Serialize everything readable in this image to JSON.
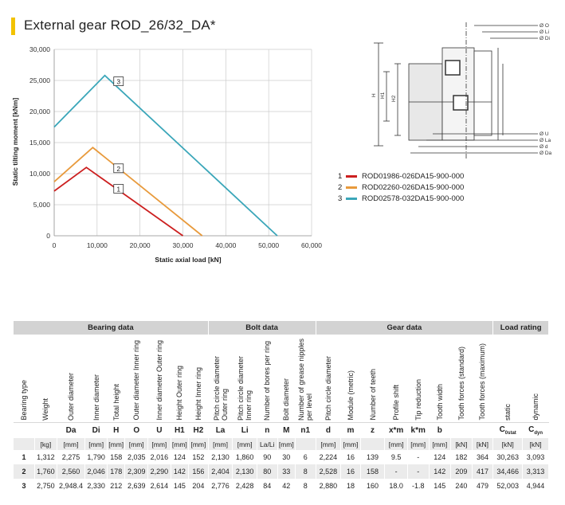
{
  "title": "External gear ROD_26/32_DA*",
  "colors": {
    "accent": "#f2c200",
    "series1": "#cc1f1f",
    "series2": "#e89a3c",
    "series3": "#3aa6b9"
  },
  "chart_data": {
    "type": "line",
    "xlabel": "Static axial load [kN]",
    "ylabel": "Static tilting moment [kNm]",
    "xlim": [
      0,
      60000
    ],
    "ylim": [
      0,
      30000
    ],
    "xticks": [
      "0",
      "10,000",
      "20,000",
      "30,000",
      "40,000",
      "50,000",
      "60,000"
    ],
    "yticks": [
      "0",
      "5,000",
      "10,000",
      "15,000",
      "20,000",
      "25,000",
      "30,000"
    ],
    "grid": true,
    "series": [
      {
        "label": "1",
        "color": "#cc1f1f",
        "points": [
          [
            0,
            7200
          ],
          [
            7500,
            11000
          ],
          [
            30000,
            0
          ]
        ],
        "label_at": [
          15000,
          7500
        ]
      },
      {
        "label": "2",
        "color": "#e89a3c",
        "points": [
          [
            0,
            8700
          ],
          [
            9000,
            14200
          ],
          [
            34500,
            0
          ]
        ],
        "label_at": [
          15000,
          10800
        ]
      },
      {
        "label": "3",
        "color": "#3aa6b9",
        "points": [
          [
            0,
            17500
          ],
          [
            11800,
            25800
          ],
          [
            52000,
            0
          ]
        ],
        "label_at": [
          15000,
          24800
        ]
      }
    ]
  },
  "legend": [
    {
      "num": "1",
      "code": "ROD01986-026DA15-900-000",
      "color": "#cc1f1f"
    },
    {
      "num": "2",
      "code": "ROD02260-026DA15-900-000",
      "color": "#e89a3c"
    },
    {
      "num": "3",
      "code": "ROD02578-032DA15-900-000",
      "color": "#3aa6b9"
    }
  ],
  "drawing": {
    "right_labels": [
      "Ø O",
      "Ø Li",
      "Ø Di",
      "Ø U",
      "Ø La",
      "Ø d",
      "Ø Da"
    ],
    "left_labels": [
      "H",
      "H1",
      "H2"
    ]
  },
  "table": {
    "groups": [
      "Bearing data",
      "Bolt data",
      "Gear data",
      "Load rating"
    ],
    "headers": [
      "Bearing type",
      "Weight",
      "Outer diameter",
      "Inner diameter",
      "Total height",
      "Outer diameter Inner ring",
      "Inner diameter Outer ring",
      "Height Outer ring",
      "Height Inner ring",
      "Pitch circle diameter Outer ring",
      "Pitch circle diameter Inner ring",
      "Number of bores per ring",
      "Bolt diameter",
      "Number of grease nipples per level",
      "Pitch circle diameter",
      "Module (metric)",
      "Number of teeth",
      "Profile shift",
      "Tip reduction",
      "Tooth width",
      "Tooth forces (standard)",
      "Tooth forces (maximum)",
      "static",
      "dynamic"
    ],
    "symbols": [
      "",
      "",
      "Da",
      "Di",
      "H",
      "O",
      "U",
      "H1",
      "H2",
      "La",
      "Li",
      "n",
      "M",
      "n1",
      "d",
      "m",
      "z",
      "x*m",
      "k*m",
      "b",
      "",
      "",
      "C0stat",
      "Cdyn"
    ],
    "units": [
      "",
      "[kg]",
      "[mm]",
      "[mm]",
      "[mm]",
      "[mm]",
      "[mm]",
      "[mm]",
      "[mm]",
      "[mm]",
      "[mm]",
      "La/Li",
      "[mm]",
      "",
      "[mm]",
      "[mm]",
      "",
      "[mm]",
      "[mm]",
      "[mm]",
      "[kN]",
      "[kN]",
      "[kN]",
      "[kN]"
    ],
    "rows": [
      [
        "1",
        "1,312",
        "2,275",
        "1,790",
        "158",
        "2,035",
        "2,016",
        "124",
        "152",
        "2,130",
        "1,860",
        "90",
        "30",
        "6",
        "2,224",
        "16",
        "139",
        "9.5",
        "-",
        "124",
        "182",
        "364",
        "30,263",
        "3,093"
      ],
      [
        "2",
        "1,760",
        "2,560",
        "2,046",
        "178",
        "2,309",
        "2,290",
        "142",
        "156",
        "2,404",
        "2,130",
        "80",
        "33",
        "8",
        "2,528",
        "16",
        "158",
        "-",
        "-",
        "142",
        "209",
        "417",
        "34,466",
        "3,313"
      ],
      [
        "3",
        "2,750",
        "2,948.4",
        "2,330",
        "212",
        "2,639",
        "2,614",
        "145",
        "204",
        "2,776",
        "2,428",
        "84",
        "42",
        "8",
        "2,880",
        "18",
        "160",
        "18.0",
        "-1.8",
        "145",
        "240",
        "479",
        "52,003",
        "4,944"
      ]
    ]
  }
}
